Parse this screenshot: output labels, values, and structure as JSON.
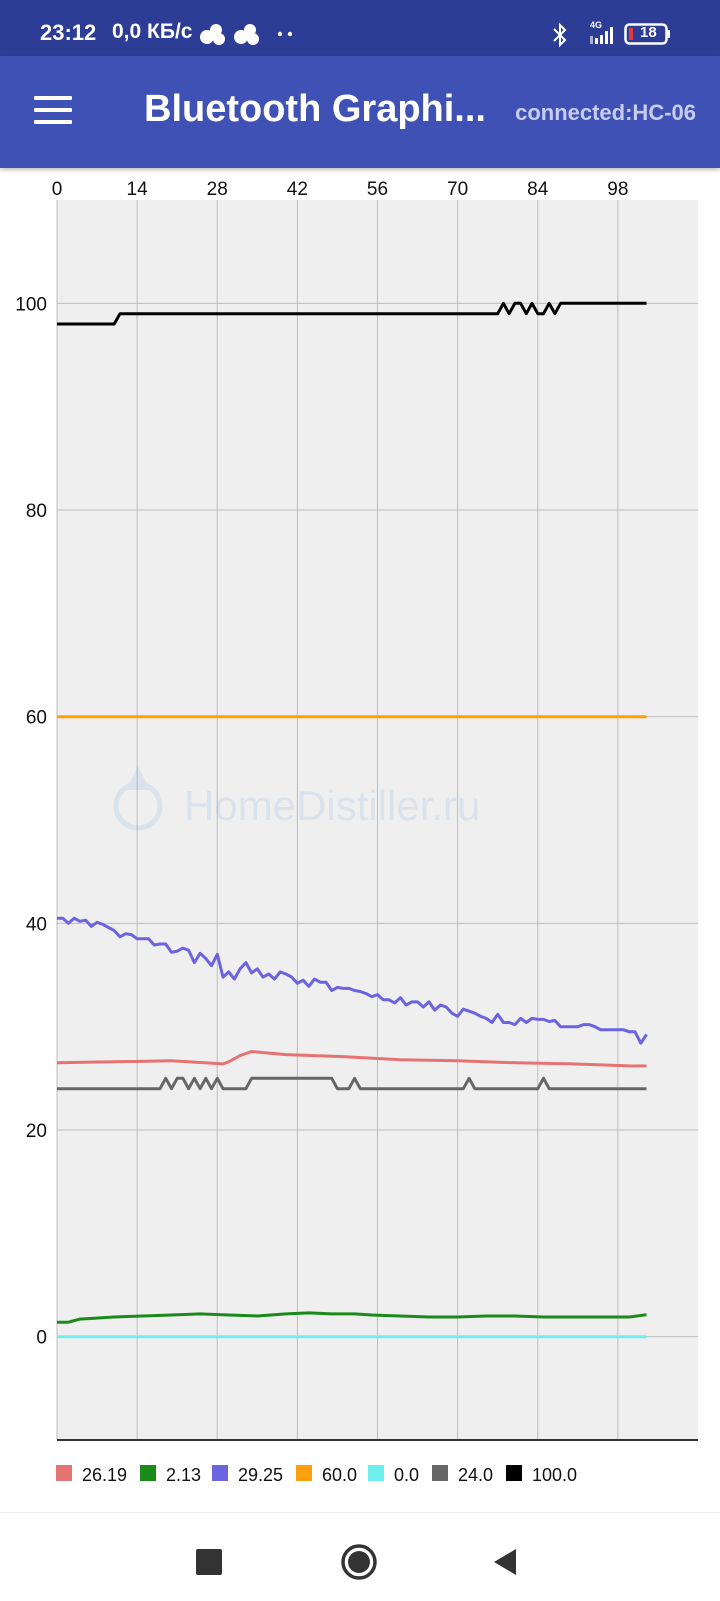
{
  "status_bar": {
    "time": "23:12",
    "speed": "0,0 КБ/с",
    "network": "4G",
    "battery": "18",
    "icons": [
      "cloud-icon",
      "cloud-icon",
      "dots-icon",
      "bluetooth-icon",
      "signal-icon",
      "battery-icon"
    ]
  },
  "app_bar": {
    "title": "Bluetooth Graphi...",
    "connection": "connected:HC-06",
    "background": "#3f51b5",
    "status_background": "#2d3c95"
  },
  "watermark": "HomeDistiller.ru",
  "chart_data": {
    "type": "line",
    "xlim": [
      0,
      112
    ],
    "ylim": [
      -10,
      110
    ],
    "x_ticks": [
      "0",
      "14",
      "28",
      "42",
      "56",
      "70",
      "84",
      "98"
    ],
    "y_ticks": [
      "100",
      "80",
      "60",
      "40",
      "20",
      "0"
    ],
    "x_axis_position": "top",
    "grid": true,
    "legend_position": "bottom-left",
    "series": [
      {
        "name": "26.19",
        "color": "#e57373",
        "x": [
          0,
          10,
          20,
          29,
          30,
          32,
          34,
          40,
          50,
          60,
          70,
          80,
          90,
          100,
          103
        ],
        "y": [
          26.5,
          26.6,
          26.7,
          26.4,
          26.6,
          27.2,
          27.6,
          27.3,
          27.1,
          26.8,
          26.7,
          26.5,
          26.4,
          26.2,
          26.19
        ]
      },
      {
        "name": "2.13",
        "color": "#1a8a1a",
        "x": [
          0,
          2,
          4,
          10,
          15,
          20,
          25,
          30,
          35,
          40,
          44,
          48,
          52,
          55,
          60,
          65,
          70,
          75,
          80,
          85,
          90,
          95,
          100,
          103
        ],
        "y": [
          1.4,
          1.4,
          1.7,
          1.9,
          2.0,
          2.1,
          2.2,
          2.1,
          2.0,
          2.2,
          2.3,
          2.2,
          2.2,
          2.1,
          2.0,
          1.9,
          1.9,
          2.0,
          2.0,
          1.9,
          1.9,
          1.9,
          1.9,
          2.13
        ]
      },
      {
        "name": "29.25",
        "color": "#6b63e0",
        "x": [
          0,
          1,
          2,
          3,
          4,
          5,
          6,
          7,
          8,
          9,
          10,
          11,
          12,
          13,
          14,
          15,
          16,
          17,
          18,
          19,
          20,
          21,
          22,
          23,
          24,
          25,
          26,
          27,
          28,
          29,
          30,
          31,
          32,
          33,
          34,
          35,
          36,
          37,
          38,
          39,
          40,
          41,
          42,
          43,
          44,
          45,
          46,
          47,
          48,
          49,
          50,
          51,
          52,
          53,
          54,
          55,
          56,
          57,
          58,
          59,
          60,
          61,
          62,
          63,
          64,
          65,
          66,
          67,
          68,
          69,
          70,
          71,
          72,
          73,
          74,
          75,
          76,
          77,
          78,
          79,
          80,
          81,
          82,
          83,
          84,
          85,
          86,
          87,
          88,
          89,
          90,
          91,
          92,
          93,
          94,
          95,
          96,
          97,
          98,
          99,
          100,
          101,
          102,
          103
        ],
        "y": [
          40.5,
          40.5,
          40.0,
          40.5,
          40.2,
          40.3,
          39.7,
          40.1,
          39.9,
          39.6,
          39.3,
          38.7,
          39.0,
          38.9,
          38.5,
          38.5,
          38.5,
          37.9,
          38.0,
          38.0,
          37.2,
          37.3,
          37.6,
          37.4,
          36.2,
          37.1,
          36.6,
          35.9,
          37.0,
          34.8,
          35.3,
          34.6,
          35.6,
          36.2,
          35.2,
          35.6,
          34.8,
          35.1,
          34.6,
          35.3,
          35.1,
          34.8,
          34.2,
          34.5,
          33.9,
          34.6,
          34.3,
          34.3,
          33.5,
          33.8,
          33.7,
          33.7,
          33.5,
          33.4,
          33.2,
          32.9,
          33.1,
          32.6,
          32.6,
          32.3,
          32.8,
          32.1,
          32.4,
          32.4,
          31.9,
          32.4,
          31.6,
          32.1,
          31.9,
          31.3,
          31.0,
          31.7,
          31.5,
          31.3,
          31.0,
          30.8,
          30.4,
          31.2,
          30.4,
          30.4,
          30.2,
          30.8,
          30.4,
          30.8,
          30.7,
          30.7,
          30.5,
          30.6,
          30.0,
          30.0,
          30.0,
          30.0,
          30.2,
          30.2,
          30.0,
          29.7,
          29.7,
          29.7,
          29.7,
          29.7,
          29.5,
          29.5,
          28.4,
          29.25
        ]
      },
      {
        "name": "60.0",
        "color": "#ff9f0d",
        "x": [
          0,
          103
        ],
        "y": [
          60.0,
          60.0
        ]
      },
      {
        "name": "0.0",
        "color": "#6ff0ee",
        "x": [
          0,
          103
        ],
        "y": [
          0.0,
          0.0
        ]
      },
      {
        "name": "24.0",
        "color": "#666666",
        "x": [
          0,
          18,
          19,
          20,
          21,
          22,
          23,
          24,
          25,
          26,
          27,
          28,
          29,
          33,
          34,
          48,
          49,
          51,
          52,
          53,
          71,
          72,
          73,
          84,
          85,
          86,
          103
        ],
        "y": [
          24,
          24,
          25,
          24,
          25,
          25,
          24,
          25,
          24,
          25,
          24,
          25,
          24,
          24,
          25,
          25,
          24,
          24,
          25,
          24,
          24,
          25,
          24,
          24,
          25,
          24,
          24
        ]
      },
      {
        "name": "100.0",
        "color": "#000000",
        "x": [
          0,
          10,
          11,
          77,
          78,
          79,
          80,
          81,
          82,
          83,
          84,
          85,
          86,
          87,
          88,
          89,
          103
        ],
        "y": [
          98,
          98,
          99,
          99,
          100,
          99,
          100,
          100,
          99,
          100,
          99,
          99,
          100,
          99,
          100,
          100,
          100
        ]
      }
    ]
  }
}
